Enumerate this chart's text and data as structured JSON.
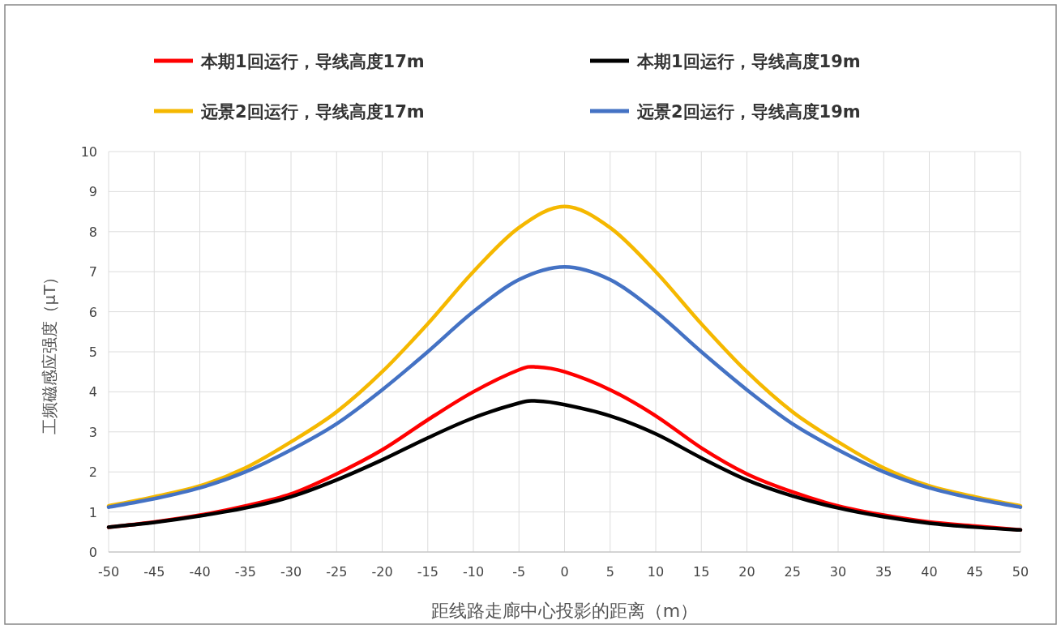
{
  "chart_data": {
    "type": "line",
    "xlabel": "距线路走廊中心投影的距离（m）",
    "ylabel": "工频磁感应强度（μT）",
    "xlim": [
      -50,
      50
    ],
    "xticks": [
      -50,
      -45,
      -40,
      -35,
      -30,
      -25,
      -20,
      -15,
      -10,
      -5,
      0,
      5,
      10,
      15,
      20,
      25,
      30,
      35,
      40,
      45,
      50
    ],
    "ylim": [
      0,
      10
    ],
    "yticks": [
      0,
      1,
      2,
      3,
      4,
      5,
      6,
      7,
      8,
      9,
      10
    ],
    "grid": true,
    "legend": "top",
    "line_style": "solid",
    "marker": "none",
    "series": [
      {
        "name": "本期1回运行，导线高度17m",
        "color": "#ff0000",
        "x": [
          -50,
          -45,
          -40,
          -35,
          -30,
          -25,
          -20,
          -15,
          -10,
          -5,
          -3,
          0,
          5,
          10,
          15,
          20,
          25,
          30,
          35,
          40,
          45,
          50
        ],
        "values": [
          0.62,
          0.75,
          0.92,
          1.15,
          1.45,
          1.95,
          2.55,
          3.3,
          4.0,
          4.55,
          4.62,
          4.5,
          4.05,
          3.4,
          2.6,
          1.95,
          1.5,
          1.15,
          0.92,
          0.75,
          0.65,
          0.55
        ]
      },
      {
        "name": "本期1回运行，导线高度19m",
        "color": "#000000",
        "x": [
          -50,
          -45,
          -40,
          -35,
          -30,
          -25,
          -20,
          -15,
          -10,
          -5,
          -3,
          0,
          5,
          10,
          15,
          20,
          25,
          30,
          35,
          40,
          45,
          50
        ],
        "values": [
          0.62,
          0.74,
          0.9,
          1.1,
          1.38,
          1.8,
          2.3,
          2.85,
          3.35,
          3.72,
          3.77,
          3.68,
          3.4,
          2.95,
          2.35,
          1.8,
          1.4,
          1.1,
          0.88,
          0.72,
          0.62,
          0.55
        ]
      },
      {
        "name": "远景2回运行，导线高度17m",
        "color": "#f5b800",
        "x": [
          -50,
          -45,
          -40,
          -35,
          -30,
          -25,
          -20,
          -15,
          -10,
          -5,
          0,
          5,
          10,
          15,
          20,
          25,
          30,
          35,
          40,
          45,
          50
        ],
        "values": [
          1.15,
          1.38,
          1.65,
          2.1,
          2.75,
          3.5,
          4.5,
          5.7,
          7.0,
          8.1,
          8.63,
          8.1,
          7.0,
          5.7,
          4.5,
          3.5,
          2.75,
          2.1,
          1.65,
          1.38,
          1.15
        ]
      },
      {
        "name": "远景2回运行，导线高度19m",
        "color": "#4472c4",
        "x": [
          -50,
          -45,
          -40,
          -35,
          -30,
          -25,
          -20,
          -15,
          -10,
          -5,
          0,
          5,
          10,
          15,
          20,
          25,
          30,
          35,
          40,
          45,
          50
        ],
        "values": [
          1.12,
          1.33,
          1.6,
          2.0,
          2.55,
          3.2,
          4.05,
          5.0,
          6.0,
          6.8,
          7.12,
          6.8,
          6.0,
          5.0,
          4.05,
          3.2,
          2.55,
          2.0,
          1.6,
          1.33,
          1.12
        ]
      }
    ]
  }
}
